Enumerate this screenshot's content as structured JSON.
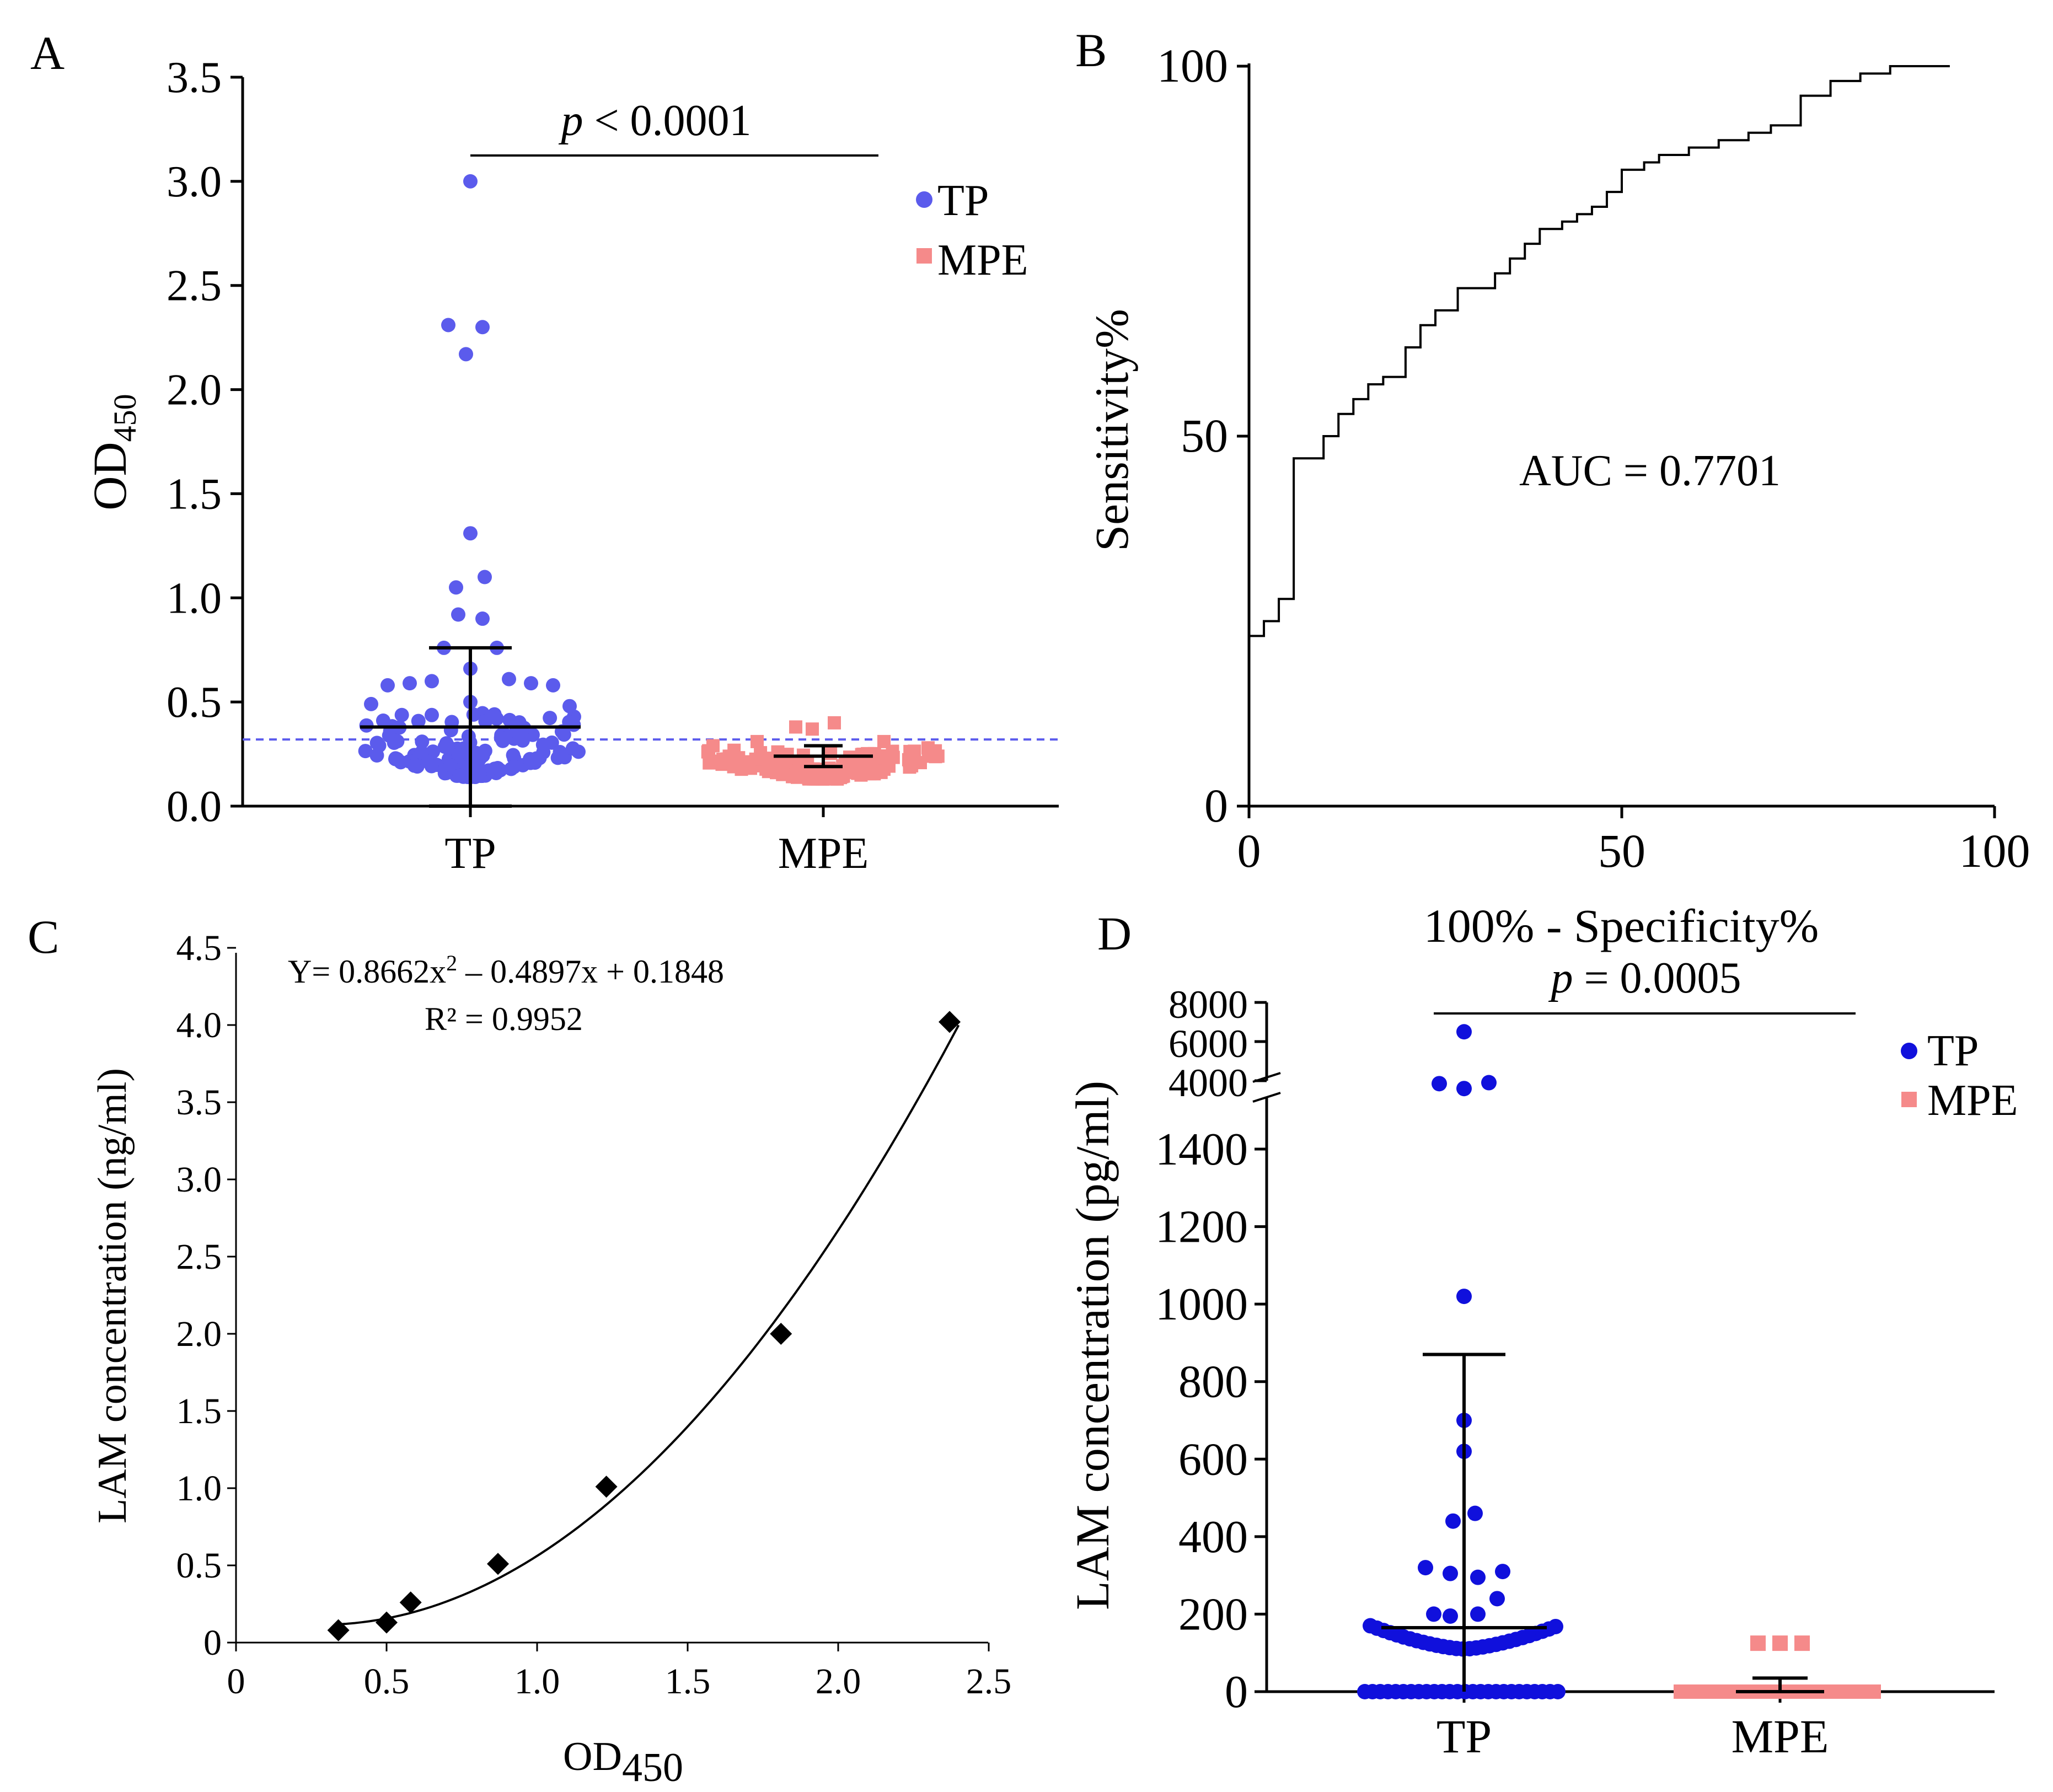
{
  "colors": {
    "tp_a": "#5b5bec",
    "mpe_a": "#f58a8a",
    "tp_d": "#1010dc",
    "mpe_d": "#f58a8a",
    "ink": "#000000"
  },
  "panelA": {
    "letter": "A",
    "ylabel": "OD",
    "ylabel_sub": "450",
    "yticks": [
      "0.0",
      "0.5",
      "1.0",
      "1.5",
      "2.0",
      "2.5",
      "3.0",
      "3.5"
    ],
    "xcats": [
      "TP",
      "MPE"
    ],
    "sig_p": "p",
    "sig_rest": " < 0.0001",
    "legend_tp": "TP",
    "legend_mpe": "MPE"
  },
  "panelB": {
    "letter": "B",
    "ylabel": "Sensitivity%",
    "xlabel": "100% - Specificity%",
    "xticks": [
      "0",
      "50",
      "100"
    ],
    "yticks": [
      "0",
      "50",
      "100"
    ],
    "annotation": "AUC = 0.7701"
  },
  "panelC": {
    "letter": "C",
    "ylabel": "LAM concentration (ng/ml)",
    "xlabel": "OD",
    "xlabel_sub": "450",
    "xticks": [
      "0",
      "0.5",
      "1.0",
      "1.5",
      "2.0",
      "2.5"
    ],
    "yticks": [
      "0",
      "0.5",
      "1.0",
      "1.5",
      "2.0",
      "2.5",
      "3.0",
      "3.5",
      "4.0",
      "4.5"
    ],
    "equation_a": "Y= 0.8662x",
    "equation_sup": "2",
    "equation_b": " – 0.4897x + 0.1848",
    "r2": "R² = 0.9952"
  },
  "panelD": {
    "letter": "D",
    "ylabel": "LAM concentration (pg/ml)",
    "yticks_low": [
      "0",
      "200",
      "400",
      "600",
      "800",
      "1000",
      "1200",
      "1400"
    ],
    "yticks_high": [
      "4000",
      "6000",
      "8000"
    ],
    "xcats": [
      "TP",
      "MPE"
    ],
    "sig_p": "p",
    "sig_rest": " = 0.0005",
    "legend_tp": "TP",
    "legend_mpe": "MPE"
  },
  "chart_data": [
    {
      "panel": "A",
      "type": "scatter",
      "title": "",
      "xlabel": "",
      "ylabel": "OD450",
      "ylim": [
        0,
        3.5
      ],
      "categories": [
        "TP",
        "MPE"
      ],
      "cutoff_line": 0.32,
      "significance": "p < 0.0001",
      "series": [
        {
          "name": "TP",
          "mean": 0.38,
          "sd_upper": 0.76,
          "sd_lower": 0.0,
          "outliers": [
            3.0,
            2.31,
            2.3,
            2.17,
            1.31,
            1.1,
            1.05,
            1.04,
            0.92,
            0.9,
            0.77,
            0.76,
            0.66,
            0.61,
            0.6,
            0.59,
            0.58,
            0.5,
            0.49,
            0.48
          ]
        },
        {
          "name": "MPE",
          "mean": 0.24,
          "sd_upper": 0.29,
          "sd_lower": 0.19,
          "outliers": [
            0.4,
            0.38,
            0.37,
            0.33,
            0.31
          ]
        }
      ]
    },
    {
      "panel": "B",
      "type": "line",
      "title": "",
      "xlabel": "100% - Specificity%",
      "ylabel": "Sensitivity%",
      "xlim": [
        0,
        100
      ],
      "ylim": [
        0,
        100
      ],
      "annotation": "AUC = 0.7701",
      "x": [
        0,
        2,
        2,
        4,
        4,
        6,
        6,
        10,
        10,
        12,
        12,
        14,
        14,
        16,
        16,
        18,
        18,
        21,
        21,
        23,
        23,
        25,
        25,
        28,
        28,
        33,
        33,
        35,
        35,
        37,
        37,
        39,
        39,
        42,
        42,
        44,
        44,
        46,
        46,
        48,
        48,
        50,
        50,
        53,
        53,
        55,
        55,
        59,
        59,
        63,
        63,
        67,
        67,
        70,
        70,
        74,
        74,
        78,
        78,
        82,
        82,
        86,
        86,
        90,
        90,
        94
      ],
      "y": [
        23,
        23,
        25,
        25,
        28,
        28,
        47,
        47,
        50,
        50,
        53,
        53,
        55,
        55,
        57,
        57,
        58,
        58,
        62,
        62,
        65,
        65,
        67,
        67,
        70,
        70,
        72,
        72,
        74,
        74,
        76,
        76,
        78,
        78,
        79,
        79,
        80,
        80,
        81,
        81,
        83,
        83,
        86,
        86,
        87,
        87,
        88,
        88,
        89,
        89,
        90,
        90,
        91,
        91,
        92,
        92,
        96,
        96,
        98,
        98,
        99,
        99,
        100,
        100,
        100,
        100
      ]
    },
    {
      "panel": "C",
      "type": "scatter",
      "title": "",
      "xlabel": "OD450",
      "ylabel": "LAM concentration (ng/ml)",
      "xlim": [
        0,
        2.5
      ],
      "ylim": [
        0,
        4.5
      ],
      "fit": {
        "a": 0.8662,
        "b": -0.4897,
        "c": 0.1848,
        "r2": 0.9952,
        "x_range": [
          0.34,
          2.4
        ]
      },
      "x": [
        0.34,
        0.5,
        0.58,
        0.87,
        1.23,
        1.81,
        2.37
      ],
      "y": [
        0.08,
        0.13,
        0.26,
        0.51,
        1.01,
        2.0,
        4.02
      ]
    },
    {
      "panel": "D",
      "type": "scatter",
      "title": "",
      "xlabel": "",
      "ylabel": "LAM concentration (pg/ml)",
      "ylim": [
        0,
        8000
      ],
      "axis_break": [
        1500,
        4000
      ],
      "categories": [
        "TP",
        "MPE"
      ],
      "significance": "p = 0.0005",
      "series": [
        {
          "name": "TP",
          "mean": 165,
          "sd_upper": 870,
          "sd_lower": 0,
          "outliers": [
            6500,
            4000,
            3600,
            3900,
            1020,
            700,
            620,
            460,
            440,
            320,
            310,
            300,
            315,
            240,
            200,
            195,
            200
          ]
        },
        {
          "name": "MPE",
          "mean": 0,
          "sd_upper": 35,
          "sd_lower": 0,
          "outliers": [
            125,
            125,
            125
          ]
        }
      ]
    }
  ]
}
